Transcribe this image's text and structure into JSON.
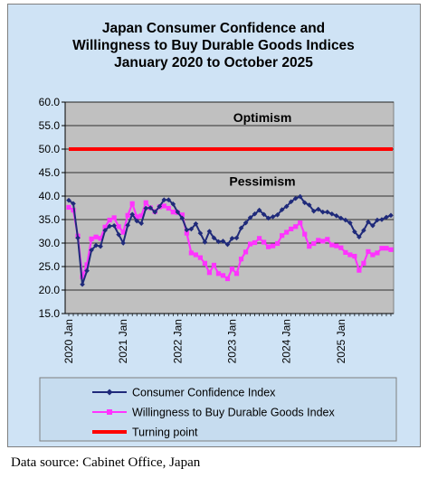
{
  "source": "Data source: Cabinet Office, Japan",
  "chart_data": {
    "type": "line",
    "title": [
      "Japan Consumer Confidence and",
      "Willingness to Buy Durable Goods Indices",
      "January 2020 to October 2025"
    ],
    "xlabel": "",
    "ylabel": "",
    "ylim": [
      15.0,
      60.0
    ],
    "yticks": [
      "15.0",
      "20.0",
      "25.0",
      "30.0",
      "35.0",
      "40.0",
      "45.0",
      "50.0",
      "55.0",
      "60.0"
    ],
    "year_labels": [
      "2020 Jan",
      "2021 Jan",
      "2022 Jan",
      "2023 Jan",
      "2024 Jan",
      "2025 Jan"
    ],
    "x_start": "2020-01",
    "x_end": "2025-10",
    "grid": "horizontal",
    "legend_position": "bottom",
    "annotations": [
      {
        "text": "Optimism",
        "y": 55.8
      },
      {
        "text": "Pessimism",
        "y": 42.2
      }
    ],
    "colors": {
      "plot_bg": "#c0c0c0",
      "frame_bg": "#cfe3f5",
      "legend_bg": "#c6dcef"
    },
    "series": [
      {
        "name": "Consumer Confidence Index",
        "color": "#1f2a7a",
        "marker": "diamond",
        "values": [
          39.1,
          38.4,
          31.1,
          21.2,
          24.1,
          28.5,
          29.5,
          29.3,
          32.7,
          33.6,
          33.7,
          31.8,
          30.0,
          33.8,
          36.1,
          34.7,
          34.2,
          37.4,
          37.5,
          36.6,
          37.8,
          39.2,
          39.2,
          38.3,
          36.6,
          35.3,
          32.8,
          33.0,
          34.1,
          32.1,
          30.2,
          32.5,
          31.1,
          30.3,
          30.4,
          29.7,
          31.0,
          31.1,
          33.2,
          34.3,
          35.4,
          36.2,
          37.0,
          36.1,
          35.3,
          35.6,
          36.0,
          37.1,
          37.8,
          38.8,
          39.5,
          39.9,
          38.6,
          38.1,
          36.8,
          37.2,
          36.6,
          36.6,
          36.2,
          35.8,
          35.3,
          34.9,
          34.3,
          32.4,
          31.3,
          32.7,
          34.5,
          33.7,
          34.9,
          35.0,
          35.5,
          35.9
        ]
      },
      {
        "name": "Willingness to Buy Durable Goods Index",
        "color": "#ff33ff",
        "marker": "square",
        "values": [
          37.6,
          37.0,
          31.5,
          22.8,
          25.4,
          30.9,
          31.3,
          31.0,
          33.4,
          34.9,
          35.4,
          33.5,
          32.3,
          35.9,
          38.4,
          35.6,
          35.8,
          38.6,
          37.5,
          36.7,
          37.7,
          37.9,
          37.4,
          36.6,
          36.5,
          36.0,
          32.1,
          27.9,
          27.5,
          26.9,
          25.7,
          23.7,
          25.3,
          23.5,
          23.1,
          22.4,
          24.5,
          23.5,
          26.6,
          28.1,
          29.8,
          30.1,
          31.0,
          30.2,
          29.2,
          29.4,
          29.9,
          31.6,
          32.3,
          33.0,
          33.5,
          34.3,
          31.9,
          29.3,
          29.9,
          30.6,
          30.4,
          30.8,
          29.6,
          29.4,
          29.0,
          28.0,
          27.5,
          27.2,
          24.2,
          25.7,
          28.2,
          27.5,
          27.9,
          28.9,
          28.9,
          28.6
        ]
      },
      {
        "name": "Turning point",
        "color": "#ff0000",
        "marker": "none",
        "values": [
          50.0,
          50.0
        ]
      }
    ]
  }
}
